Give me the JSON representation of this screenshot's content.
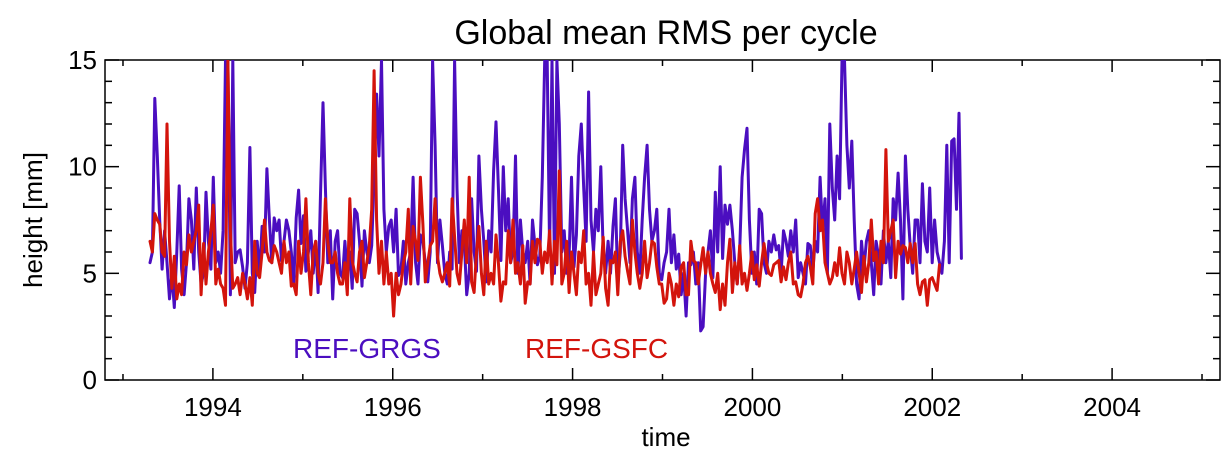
{
  "chart_data": {
    "type": "line",
    "title": "Global mean RMS per cycle",
    "xlabel": "time",
    "ylabel": "height [mm]",
    "xlim": [
      1992.8,
      2005.2
    ],
    "ylim": [
      0,
      15
    ],
    "x_ticks": [
      1994,
      1996,
      1998,
      2000,
      2002,
      2004
    ],
    "x_tick_labels": [
      "1994",
      "1996",
      "1998",
      "2000",
      "2002",
      "2004"
    ],
    "y_ticks": [
      0,
      5,
      10,
      15
    ],
    "y_tick_labels": [
      "0",
      "5",
      "10",
      "15"
    ],
    "x_minor_ticks": [
      1993,
      1995,
      1997,
      1999,
      2001,
      2003,
      2005
    ],
    "y_minor_ticks": [
      1,
      2,
      3,
      4,
      6,
      7,
      8,
      9,
      11,
      12,
      13,
      14
    ],
    "grid": false,
    "legend_placement": "inside bottom-left",
    "series": [
      {
        "name": "REF-GRGS",
        "color": "#4b0ec0",
        "x_start": 1993.3,
        "x_step": 0.0271,
        "values": [
          5.5,
          6,
          13.2,
          10.5,
          7.5,
          5.2,
          7,
          5.5,
          3.8,
          5,
          3.4,
          6,
          9.1,
          5.2,
          4,
          5.5,
          8.5,
          7.5,
          5.2,
          9,
          6,
          4.5,
          5,
          8.8,
          6.5,
          5.2,
          9.5,
          5.5,
          6,
          5,
          7,
          15,
          15,
          4,
          15,
          5.5,
          6,
          6.1,
          5.3,
          4.3,
          5.5,
          10.9,
          5,
          4.1,
          6.5,
          5,
          7.2,
          6,
          9.9,
          7.5,
          5.5,
          7.6,
          7,
          7.5,
          5.6,
          6.5,
          7.5,
          7,
          6,
          4.5,
          7.6,
          8.9,
          6.4,
          7.7,
          5.1,
          6,
          7,
          5,
          6.5,
          4.1,
          8.7,
          13,
          9,
          5.5,
          7,
          3.8,
          6.5,
          7,
          5,
          4.8,
          6.5,
          5,
          6,
          4.3,
          8,
          7.8,
          6.5,
          4.4,
          7,
          6,
          5.5,
          6.3,
          9.5,
          13.4,
          10.5,
          15,
          8,
          6,
          7.2,
          7.5,
          6,
          8,
          4.9,
          5.2,
          6.5,
          4.5,
          5.5,
          6,
          9.5,
          5.5,
          4.5,
          6.8,
          6.5,
          5.5,
          4.6,
          6,
          15,
          11,
          5.5,
          7.5,
          6.3,
          5,
          4.5,
          6,
          5.2,
          15,
          9,
          5.5,
          7,
          6.5,
          4,
          5,
          8.5,
          6,
          5.1,
          10.5,
          8,
          6.5,
          4.6,
          7,
          6,
          9.8,
          12.1,
          9,
          5.6,
          10,
          7,
          8.5,
          5.5,
          6,
          10.5,
          5,
          7.5,
          6,
          5.5,
          6.5,
          4.5,
          7.5,
          6.3,
          5.4,
          5.8,
          9.5,
          15,
          15,
          6,
          15,
          5,
          15,
          12,
          6,
          7,
          5,
          5.8,
          9.5,
          5.3,
          6.8,
          10.5,
          12,
          9,
          6.5,
          13.5,
          7.5,
          6,
          8,
          7,
          10,
          6,
          5,
          6.5,
          5,
          7.2,
          8.5,
          4.5,
          6,
          11,
          8.5,
          7,
          5.5,
          8.5,
          9.5,
          6,
          5,
          7.5,
          9.5,
          11,
          8,
          6.5,
          7,
          8,
          5,
          4.7,
          5.5,
          6,
          8,
          5.5,
          6.8,
          5.2,
          5.9,
          4,
          5,
          3,
          5.5,
          5.4,
          6,
          4.5,
          5.5,
          2.3,
          2.5,
          5,
          6,
          7,
          4.8,
          8.8,
          6,
          10,
          5.7,
          8.2,
          7.3,
          8.2,
          7,
          5.5,
          4.5,
          6.1,
          9.5,
          10.8,
          11.8,
          7.5,
          5,
          6,
          4.5,
          8,
          7.8,
          5.5,
          5,
          6.5,
          6,
          6.8,
          6.1,
          6.3,
          5,
          7,
          6.5,
          5.8,
          7,
          6,
          7.5,
          4.8,
          5.5,
          5,
          4.5,
          6.4,
          6.3,
          5.1,
          6.5,
          6,
          9.5,
          7,
          8.5,
          5,
          12,
          9,
          7.5,
          10.5,
          8.5,
          15,
          15,
          11,
          9,
          11.2,
          7.5,
          4.5,
          3.8,
          6.5,
          5.2,
          6.5,
          7,
          5.5,
          4,
          6.5,
          5.8,
          4.5,
          7,
          5.5,
          6.5,
          4.8,
          8.5,
          7.5,
          9.7,
          7.5,
          3.8,
          10.5,
          8,
          6.3,
          5,
          7.5,
          7.5,
          5.5,
          9.2,
          6.5,
          6,
          9,
          5.5,
          7.5,
          6,
          5.5,
          5,
          6.5,
          11,
          5.5,
          11.2,
          11.3,
          8,
          12.5,
          5.7
        ]
      },
      {
        "name": "REF-GSFC",
        "color": "#d3140c",
        "x_start": 1993.3,
        "x_step": 0.0271,
        "values": [
          6.5,
          6,
          7.8,
          7.5,
          7.3,
          6,
          5.8,
          12,
          6.5,
          4.3,
          5.8,
          3.8,
          4.5,
          4,
          6,
          5.4,
          6.8,
          6,
          6.5,
          7,
          8.2,
          4,
          6.4,
          4.5,
          6,
          7,
          8.2,
          4.5,
          5.2,
          4.5,
          4.3,
          3.5,
          15,
          7,
          4.3,
          4.5,
          4.8,
          4,
          5,
          4.5,
          3.8,
          4.8,
          3.5,
          6.5,
          5,
          4.8,
          6,
          7.5,
          6,
          5.6,
          5.5,
          6.3,
          6,
          5.5,
          5,
          6.5,
          5.5,
          6,
          4.4,
          4.5,
          4,
          6.5,
          5,
          6,
          8.5,
          5.5,
          4,
          6,
          6.5,
          5,
          4.5,
          5.5,
          8.5,
          6.5,
          5.5,
          5.5,
          6,
          5,
          4.5,
          4.5,
          5.5,
          4,
          8.5,
          5.6,
          5,
          4.6,
          6,
          6.5,
          4.8,
          5.5,
          6.3,
          8,
          14.5,
          7.5,
          5,
          6.5,
          4.5,
          6,
          4.5,
          5,
          3,
          5,
          4,
          4.5,
          5.5,
          6,
          8,
          4.5,
          7.2,
          6.5,
          5.6,
          9.5,
          7.3,
          4.6,
          5.5,
          6.3,
          6.5,
          8.5,
          5.8,
          5,
          4.6,
          5,
          5.5,
          4.4,
          8.5,
          6.7,
          5,
          4.5,
          6,
          7.5,
          5.5,
          9.5,
          4.6,
          4.1,
          6,
          7.2,
          5,
          4,
          6.5,
          4.5,
          5,
          4.5,
          6.8,
          5.5,
          3.7,
          4.6,
          4.5,
          7,
          5.5,
          7.5,
          5,
          5.5,
          4.5,
          6.3,
          3.6,
          4.6,
          4.5,
          6.5,
          5.5,
          6.6,
          6.5,
          5,
          6,
          5.5,
          7,
          4.5,
          6.5,
          5.4,
          9.8,
          4.5,
          5,
          6.5,
          4.1,
          6,
          5,
          4,
          6,
          5.5,
          7,
          4.5,
          5,
          3.5,
          6,
          4,
          4.5,
          5,
          6.7,
          4.3,
          3.5,
          5.6,
          5.5,
          6,
          4,
          6.5,
          7,
          5.8,
          5.1,
          4.5,
          7.5,
          6,
          5,
          4.3,
          5,
          6.5,
          4.8,
          5.5,
          6.5,
          6.4,
          5.3,
          4.5,
          4.5,
          3.6,
          3.8,
          5,
          4.5,
          3.5,
          4.5,
          3.9,
          5.3,
          5.5,
          4,
          4,
          6.5,
          5.6,
          5.5,
          4.5,
          5.4,
          6.2,
          5,
          6,
          5,
          4.5,
          4.1,
          5,
          3.3,
          4.5,
          3.5,
          5.5,
          6.6,
          4.1,
          5.5,
          4.5,
          6.3,
          4.5,
          5,
          4.2,
          5,
          6,
          4.7,
          5.4,
          4.4,
          5.5,
          6.4,
          5.5,
          5,
          4.9,
          5.4,
          5.5,
          5.6,
          4.6,
          5.3,
          4.7,
          5.5,
          6,
          4.5,
          4.6,
          4,
          3.9,
          4.5,
          5.5,
          5.8,
          5.3,
          4.5,
          7.8,
          8.5,
          7,
          7.5,
          5.5,
          5,
          4.5,
          4.8,
          5.5,
          4.9,
          6.2,
          5,
          4.5,
          6,
          5.5,
          4.5,
          5.2,
          6,
          5,
          4.1,
          5.8,
          4.6,
          5.5,
          7.5,
          5.6,
          6,
          4.5,
          6.5,
          5.5,
          10.8,
          6.5,
          7,
          7.5,
          4.8,
          6.5,
          5.9,
          6.3,
          6.2,
          5.5,
          6.4,
          5.5,
          6.4,
          4.5,
          4,
          4.6,
          4.7,
          3.5,
          4.7,
          4.8,
          4.5,
          4.2,
          5.4
        ]
      }
    ]
  }
}
